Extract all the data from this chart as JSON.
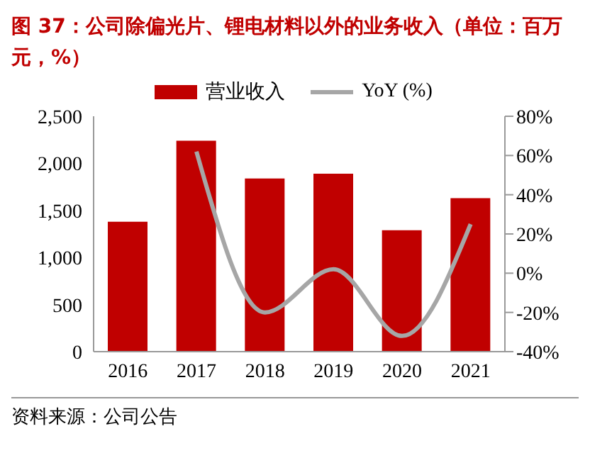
{
  "chart_data": {
    "type": "bar",
    "title": "图 37：公司除偏光片、锂电材料以外的业务收入（单位：百万元，%）",
    "annotations": [
      "资料来源：公司公告"
    ],
    "categories": [
      "2016",
      "2017",
      "2018",
      "2019",
      "2020",
      "2021"
    ],
    "series": [
      {
        "name": "营业收入",
        "color": "#c00000",
        "values": [
          1380,
          2240,
          1840,
          1890,
          1290,
          1630
        ]
      },
      {
        "name": "YoY (%)",
        "type": "line",
        "color": "#a6a6a6",
        "axis": "y2",
        "values": [
          null,
          62,
          -20,
          2,
          -32,
          25
        ]
      }
    ],
    "ylim": [
      0,
      2500
    ],
    "yticks": [
      0,
      {
        "value": 500,
        "label": "500"
      },
      {
        "value": 1000,
        "label": "1,000"
      },
      {
        "value": 1500,
        "label": "1,500"
      },
      {
        "value": 2000,
        "label": "2,000"
      },
      {
        "value": 2500,
        "label": "2,500"
      }
    ],
    "y2lim": [
      -40,
      80
    ],
    "y2ticks": [
      {
        "value": -40,
        "label": "-40%"
      },
      {
        "value": -20,
        "label": "-20%"
      },
      {
        "value": 0,
        "label": "0%"
      },
      {
        "value": 20,
        "label": "20%"
      },
      {
        "value": 40,
        "label": "40%"
      },
      {
        "value": 60,
        "label": "60%"
      },
      {
        "value": 80,
        "label": "80%"
      }
    ],
    "grid": false,
    "legend": "top",
    "marker": "none",
    "line_style": "solid"
  }
}
